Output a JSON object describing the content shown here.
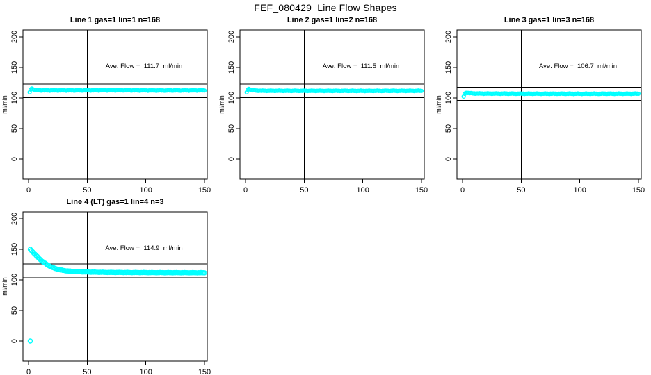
{
  "header": {
    "title": "FEF_080429  Line Flow Shapes"
  },
  "colors": {
    "series": "#00ffff",
    "axis": "#000000",
    "background": "#ffffff",
    "text": "#000000"
  },
  "axes": {
    "xticks": [
      0,
      50,
      100,
      150
    ],
    "yticks": [
      0,
      50,
      100,
      150,
      200
    ],
    "xlim": [
      -4.7,
      152.4
    ],
    "ylim": [
      -33,
      211.5
    ],
    "xlabel": "",
    "ylabel": "ml/min",
    "vline_x": 50,
    "grid": false
  },
  "chart_data": [
    {
      "type": "scatter",
      "title": "Line 1 gas=1 lin=1 n=168",
      "annotation": "Ave. Flow =  111.7  ml/min",
      "ave_flow": 111.7,
      "n": 168,
      "hlines": [
        122.9,
        100.5
      ],
      "marker": "open-circle",
      "marker_color": "#00ffff",
      "marker_r": 2.4,
      "jitter": 0.55,
      "series_points": [
        [
          1,
          109
        ],
        [
          2,
          114.5
        ],
        [
          3,
          115.5
        ],
        [
          4.5,
          114
        ],
        [
          6,
          113.2
        ],
        [
          9,
          112.6
        ],
        [
          15,
          112.4
        ],
        [
          40,
          112.4
        ],
        [
          80,
          112.6
        ],
        [
          110,
          112.3
        ],
        [
          150,
          112.4
        ]
      ],
      "extra_points": []
    },
    {
      "type": "scatter",
      "title": "Line 2 gas=1 lin=2 n=168",
      "annotation": "Ave. Flow =  111.5  ml/min",
      "ave_flow": 111.5,
      "n": 168,
      "hlines": [
        122.7,
        100.4
      ],
      "marker": "open-circle",
      "marker_color": "#00ffff",
      "marker_r": 2.4,
      "jitter": 0.5,
      "series_points": [
        [
          1,
          109
        ],
        [
          2,
          114
        ],
        [
          3,
          115
        ],
        [
          5,
          113
        ],
        [
          8,
          112.2
        ],
        [
          15,
          111.8
        ],
        [
          50,
          111.7
        ],
        [
          100,
          111.6
        ],
        [
          150,
          111.7
        ]
      ],
      "extra_points": []
    },
    {
      "type": "scatter",
      "title": "Line 3 gas=1 lin=3 n=168",
      "annotation": "Ave. Flow =  106.7  ml/min",
      "ave_flow": 106.7,
      "n": 168,
      "hlines": [
        117.4,
        96.0
      ],
      "marker": "open-circle",
      "marker_color": "#00ffff",
      "marker_r": 2.4,
      "jitter": 0.5,
      "series_points": [
        [
          1,
          102
        ],
        [
          2,
          107.5
        ],
        [
          3.5,
          108.8
        ],
        [
          5,
          108.2
        ],
        [
          8,
          107.5
        ],
        [
          15,
          107.2
        ],
        [
          50,
          107
        ],
        [
          100,
          106.9
        ],
        [
          150,
          107
        ]
      ],
      "extra_points": []
    },
    {
      "type": "scatter",
      "title": "Line 4 (LT) gas=1 lin=4 n=3",
      "annotation": "Ave. Flow =  114.9  ml/min",
      "ave_flow": 114.9,
      "n": 3,
      "hlines": [
        126.4,
        103.4
      ],
      "marker": "open-circle",
      "marker_color": "#00ffff",
      "marker_r": 3.0,
      "jitter": 0.35,
      "series_points": [
        [
          1.5,
          150
        ],
        [
          3,
          147
        ],
        [
          5,
          143
        ],
        [
          7,
          139
        ],
        [
          9,
          135
        ],
        [
          12,
          130
        ],
        [
          15,
          126
        ],
        [
          18,
          122.5
        ],
        [
          22,
          119
        ],
        [
          26,
          116.8
        ],
        [
          30,
          115.3
        ],
        [
          36,
          114
        ],
        [
          44,
          113.2
        ],
        [
          52,
          112.8
        ],
        [
          65,
          112.3
        ],
        [
          85,
          112
        ],
        [
          110,
          111.8
        ],
        [
          150,
          111.6
        ]
      ],
      "extra_points": [
        [
          1.5,
          0
        ]
      ]
    }
  ]
}
